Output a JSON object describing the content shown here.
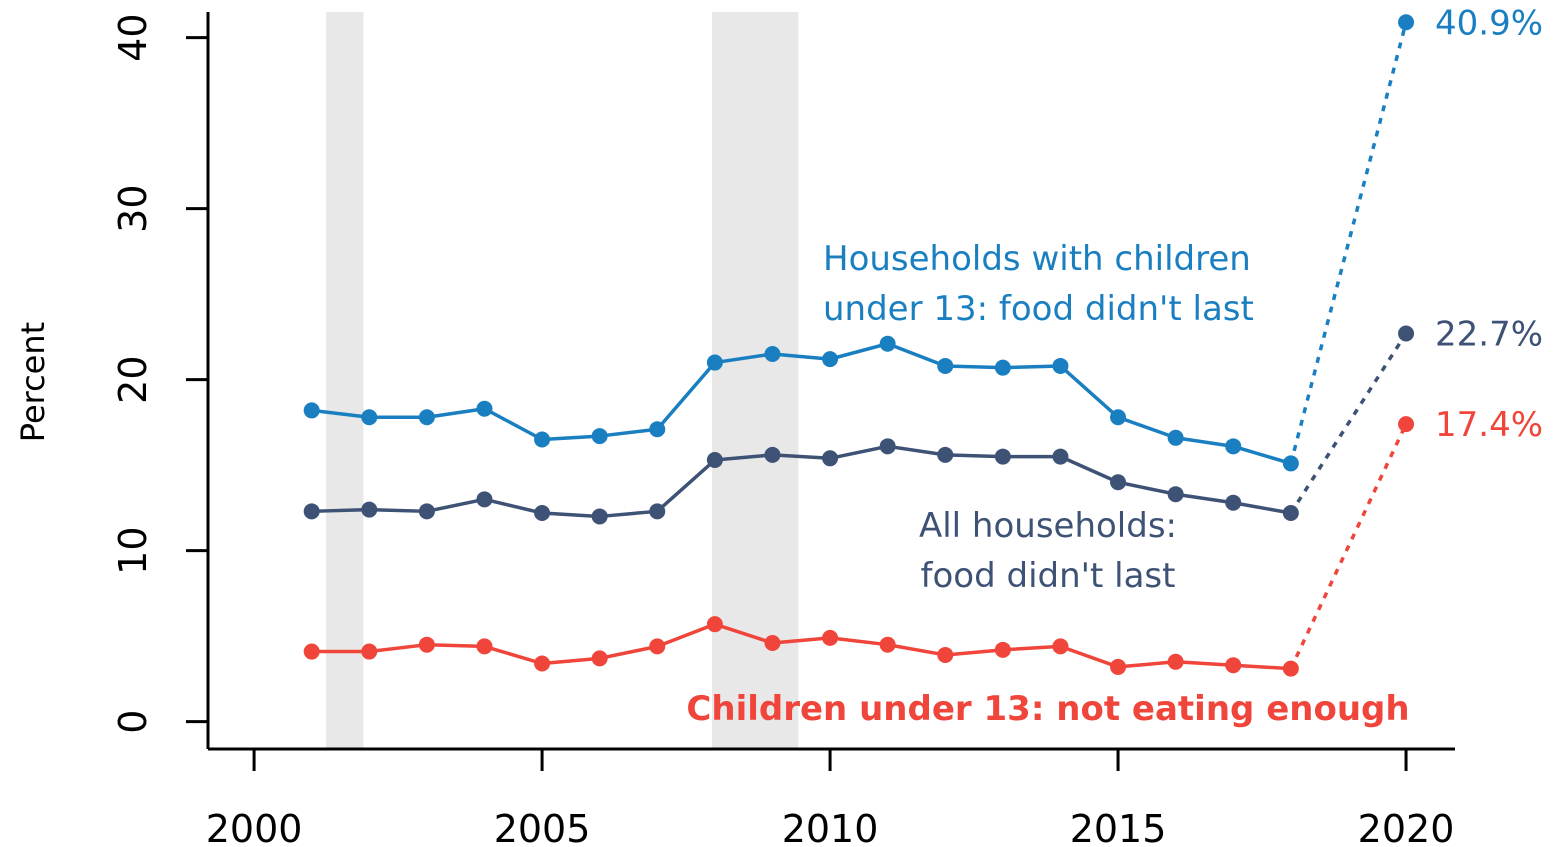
{
  "chart_data": {
    "type": "line",
    "title": "",
    "xlabel": "",
    "ylabel": "Percent",
    "xlim": [
      1999.2,
      2020.85
    ],
    "ylim": [
      -1.6,
      41.5
    ],
    "xticks": [
      2000,
      2005,
      2010,
      2015,
      2020
    ],
    "xtick_labels": [
      "2000",
      "2005",
      "2010",
      "2015",
      "2020"
    ],
    "yticks": [
      0,
      10,
      20,
      30,
      40
    ],
    "ytick_labels": [
      "0",
      "10",
      "20",
      "30",
      "40"
    ],
    "grid": false,
    "recession_shading": [
      {
        "start": 2001.25,
        "end": 2001.9
      },
      {
        "start": 2007.95,
        "end": 2009.45
      }
    ],
    "x": [
      2001,
      2002,
      2003,
      2004,
      2005,
      2006,
      2007,
      2008,
      2009,
      2010,
      2011,
      2012,
      2013,
      2014,
      2015,
      2016,
      2017,
      2018
    ],
    "projection_x": [
      2018,
      2020
    ],
    "series": [
      {
        "name": "Households with children under 13: food didn't last",
        "label_lines": [
          "Households with children",
          "under 13: food didn't last"
        ],
        "color": "#1a7fc1",
        "values": [
          18.2,
          17.8,
          17.8,
          18.3,
          16.5,
          16.7,
          17.1,
          21.0,
          21.5,
          21.2,
          22.1,
          20.8,
          20.7,
          20.8,
          17.8,
          16.6,
          16.1,
          15.1
        ],
        "end_value": 40.9,
        "end_label": "40.9%"
      },
      {
        "name": "All households: food didn't last",
        "label_lines": [
          "All households:",
          "food didn't last"
        ],
        "color": "#3e5275",
        "values": [
          12.3,
          12.4,
          12.3,
          13.0,
          12.2,
          12.0,
          12.3,
          15.3,
          15.6,
          15.4,
          16.1,
          15.6,
          15.5,
          15.5,
          14.0,
          13.3,
          12.8,
          12.2
        ],
        "end_value": 22.7,
        "end_label": "22.7%"
      },
      {
        "name": "Children under 13: not eating enough",
        "label_lines": [
          "Children under 13: not eating enough"
        ],
        "color": "#f0453a",
        "values": [
          4.1,
          4.1,
          4.5,
          4.4,
          3.4,
          3.7,
          4.4,
          5.7,
          4.6,
          4.9,
          4.5,
          3.9,
          4.2,
          4.4,
          3.2,
          3.5,
          3.3,
          3.1
        ],
        "end_value": 17.4,
        "end_label": "17.4%"
      }
    ]
  }
}
